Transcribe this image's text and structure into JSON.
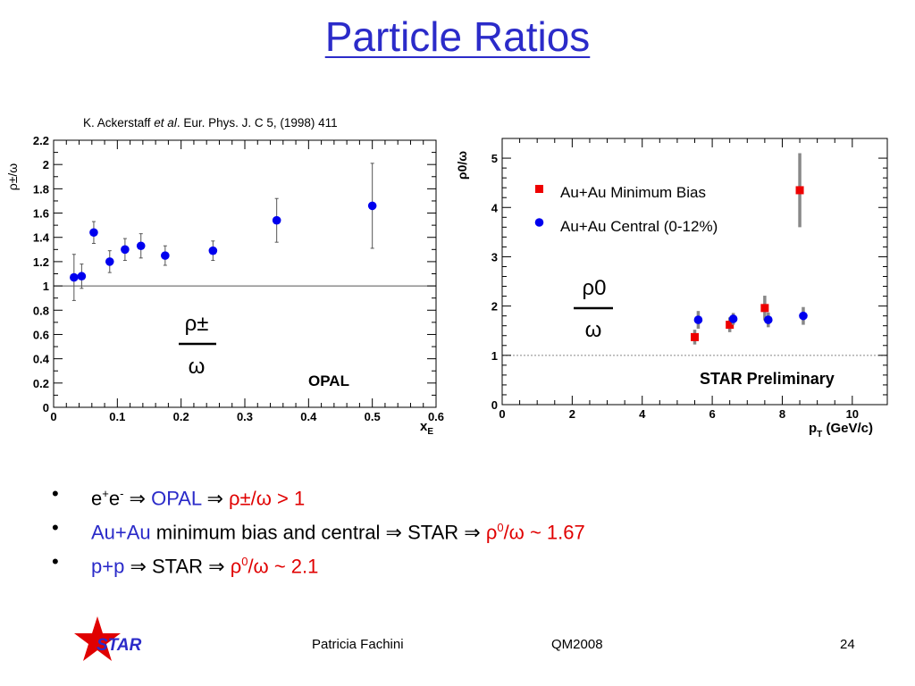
{
  "slide": {
    "title": "Particle Ratios",
    "citation_author": "K. Ackerstaff ",
    "citation_etal": "et al",
    "citation_rest": ". Eur. Phys. J. C 5, (1998) 411"
  },
  "bullets": [
    {
      "dot": "•",
      "p1": "e",
      "p1sup": "+",
      "p2": "e",
      "p2sup": "-",
      "p3": " ⇒ ",
      "p4": "OPAL",
      "p5": " ⇒ ",
      "p6": "ρ±/ω > 1"
    },
    {
      "dot": "•",
      "p1": "Au+Au",
      "p2": " minimum bias and central ⇒ STAR ⇒ ",
      "p3": "ρ",
      "p3sup": "0",
      "p4": "/ω ~ 1.67"
    },
    {
      "dot": "•",
      "p1": "p+p",
      "p2": "  ⇒ STAR ⇒ ",
      "p3": "ρ",
      "p3sup": "0",
      "p4": "/ω ~ 2.1"
    }
  ],
  "footer": {
    "logo_text": "STAR",
    "author": "Patricia Fachini",
    "conference": "QM2008",
    "page_number": "24"
  },
  "colors": {
    "title": "#2b2bc9",
    "opal_marker": "#0000ee",
    "star_minbias": "#ee0000",
    "star_central": "#0000ee",
    "highlight_red": "#e00000"
  },
  "chart_data": [
    {
      "type": "scatter",
      "ylabel": "ρ±/ω",
      "xlabel_main": "x",
      "xlabel_sub": "E",
      "xlim": [
        0,
        0.6
      ],
      "ylim": [
        0,
        2.2
      ],
      "xticks": [
        0,
        0.1,
        0.2,
        0.3,
        0.4,
        0.5,
        0.6
      ],
      "xtick_labels": [
        "0",
        "0.1",
        "0.2",
        "0.3",
        "0.4",
        "0.5",
        "0.6"
      ],
      "yticks": [
        0,
        0.2,
        0.4,
        0.6,
        0.8,
        1,
        1.2,
        1.4,
        1.6,
        1.8,
        2,
        2.2
      ],
      "ytick_labels": [
        "0",
        "0.2",
        "0.4",
        "0.6",
        "0.8",
        "1",
        "1.2",
        "1.4",
        "1.6",
        "1.8",
        "2",
        "2.2"
      ],
      "reference_line": 1,
      "annotation": "OPAL",
      "ratio_label": {
        "num": "ρ±",
        "den": "ω"
      },
      "series": [
        {
          "color": "#0000ee",
          "marker": "circle",
          "x": [
            0.032,
            0.044,
            0.063,
            0.088,
            0.112,
            0.137,
            0.175,
            0.25,
            0.35,
            0.5
          ],
          "y": [
            1.07,
            1.08,
            1.44,
            1.2,
            1.3,
            1.33,
            1.25,
            1.29,
            1.54,
            1.66
          ],
          "err": [
            0.19,
            0.1,
            0.09,
            0.09,
            0.09,
            0.1,
            0.08,
            0.08,
            0.18,
            0.35
          ]
        }
      ]
    },
    {
      "type": "scatter",
      "ylabel": "ρ0/ω",
      "xlabel_main": "p",
      "xlabel_sub": "T",
      "xlabel_unit": " (GeV/c)",
      "xlim": [
        0,
        11
      ],
      "ylim": [
        0,
        5.4
      ],
      "xticks": [
        0,
        2,
        4,
        6,
        8,
        10
      ],
      "xtick_labels": [
        "0",
        "2",
        "4",
        "6",
        "8",
        "10"
      ],
      "yticks": [
        0,
        1,
        2,
        3,
        4,
        5
      ],
      "ytick_labels": [
        "0",
        "1",
        "2",
        "3",
        "4",
        "5"
      ],
      "reference_line": 1,
      "annotation": "STAR Preliminary",
      "ratio_label": {
        "num": "ρ0",
        "den": "ω"
      },
      "legend_placement": "top-left",
      "series": [
        {
          "name": "Au+Au Minimum Bias",
          "color": "#ee0000",
          "marker": "square",
          "x": [
            5.5,
            6.5,
            7.5,
            8.5
          ],
          "y": [
            1.37,
            1.62,
            1.96,
            4.35
          ],
          "err": [
            0.15,
            0.15,
            0.25,
            0.75
          ]
        },
        {
          "name": "Au+Au Central (0-12%)",
          "color": "#0000ee",
          "marker": "circle",
          "x": [
            5.6,
            6.6,
            7.6,
            8.6
          ],
          "y": [
            1.72,
            1.74,
            1.72,
            1.8
          ],
          "err": [
            0.18,
            0.12,
            0.15,
            0.18
          ]
        }
      ]
    }
  ]
}
